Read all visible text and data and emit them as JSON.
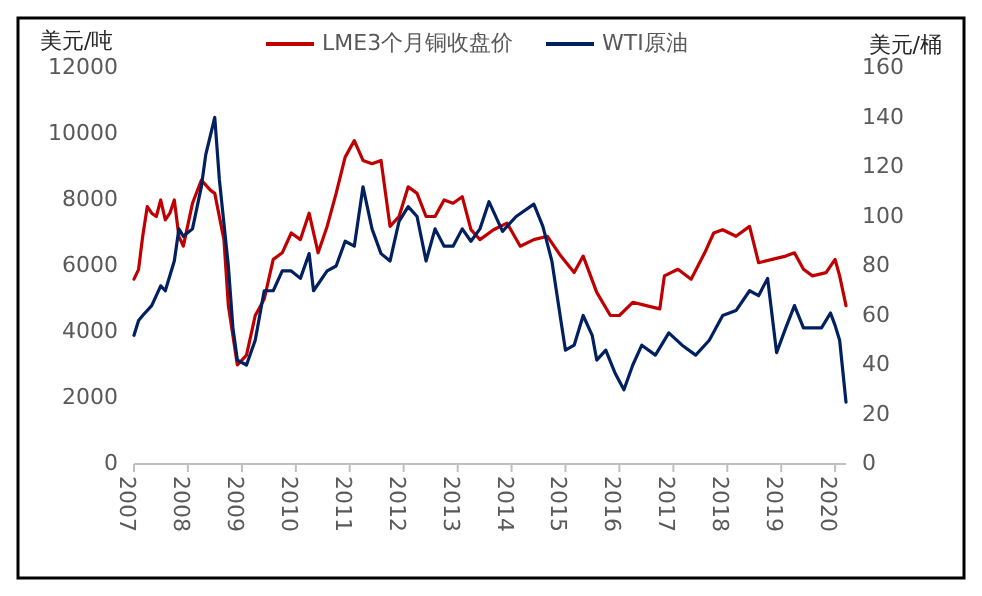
{
  "chart_data": {
    "type": "line",
    "ylabel": "美元/吨",
    "y2label": "美元/桶",
    "legend": "top",
    "grid": false,
    "xlim": [
      "2007-01",
      "2020-03-15"
    ],
    "xticks": [
      "2007",
      "2008",
      "2009",
      "2010",
      "2011",
      "2012",
      "2013",
      "2014",
      "2015",
      "2016",
      "2017",
      "2018",
      "2019",
      "2020"
    ],
    "ylim": [
      0,
      12000
    ],
    "yticks": [
      0,
      2000,
      4000,
      6000,
      8000,
      10000,
      12000
    ],
    "y2lim": [
      0,
      160
    ],
    "y2ticks": [
      0,
      20,
      40,
      60,
      80,
      100,
      120,
      140,
      160
    ],
    "series": [
      {
        "name": "LME3个月铜收盘价",
        "color": "#c00000",
        "x": [
          "2007-01",
          "2007-02",
          "2007-03",
          "2007-04",
          "2007-05",
          "2007-06",
          "2007-07",
          "2007-08",
          "2007-09",
          "2007-10",
          "2007-11",
          "2007-12",
          "2008-02",
          "2008-04",
          "2008-06",
          "2008-07",
          "2008-09",
          "2008-10",
          "2008-12",
          "2009-02",
          "2009-04",
          "2009-06",
          "2009-08",
          "2009-10",
          "2009-12",
          "2010-02",
          "2010-04",
          "2010-06",
          "2010-08",
          "2010-10",
          "2010-12",
          "2011-02",
          "2011-04",
          "2011-06",
          "2011-08",
          "2011-10",
          "2011-12",
          "2012-02",
          "2012-04",
          "2012-06",
          "2012-08",
          "2012-10",
          "2012-12",
          "2013-02",
          "2013-04",
          "2013-06",
          "2013-09",
          "2013-12",
          "2014-03",
          "2014-06",
          "2014-09",
          "2014-12",
          "2015-03",
          "2015-05",
          "2015-08",
          "2015-11",
          "2016-01",
          "2016-04",
          "2016-07",
          "2016-10",
          "2016-11",
          "2017-02",
          "2017-05",
          "2017-08",
          "2017-10",
          "2017-12",
          "2018-03",
          "2018-06",
          "2018-08",
          "2018-11",
          "2019-02",
          "2019-04",
          "2019-06",
          "2019-08",
          "2019-11",
          "2020-01",
          "2020-02",
          "2020-03-15"
        ],
        "values": [
          5600,
          5900,
          6900,
          7800,
          7600,
          7500,
          8000,
          7400,
          7600,
          8000,
          6900,
          6600,
          7900,
          8600,
          8300,
          8200,
          6800,
          4800,
          3000,
          3300,
          4500,
          5000,
          6200,
          6400,
          7000,
          6800,
          7600,
          6400,
          7200,
          8200,
          9300,
          9800,
          9200,
          9100,
          9200,
          7200,
          7500,
          8400,
          8200,
          7500,
          7500,
          8000,
          7900,
          8100,
          7100,
          6800,
          7100,
          7300,
          6600,
          6800,
          6900,
          6300,
          5800,
          6300,
          5200,
          4500,
          4500,
          4900,
          4800,
          4700,
          5700,
          5900,
          5600,
          6400,
          7000,
          7100,
          6900,
          7200,
          6100,
          6200,
          6300,
          6400,
          5900,
          5700,
          5800,
          6200,
          5700,
          4800
        ]
      },
      {
        "name": "WTI原油",
        "color": "#002060",
        "axis": "y2",
        "x": [
          "2007-01",
          "2007-02",
          "2007-03",
          "2007-05",
          "2007-07",
          "2007-08",
          "2007-10",
          "2007-11",
          "2007-12",
          "2008-02",
          "2008-04",
          "2008-05",
          "2008-07",
          "2008-08",
          "2008-10",
          "2008-11",
          "2008-12",
          "2009-02",
          "2009-04",
          "2009-06",
          "2009-08",
          "2009-10",
          "2009-12",
          "2010-02",
          "2010-04",
          "2010-05",
          "2010-08",
          "2010-10",
          "2010-12",
          "2011-02",
          "2011-04",
          "2011-06",
          "2011-08",
          "2011-10",
          "2011-12",
          "2012-02",
          "2012-04",
          "2012-06",
          "2012-08",
          "2012-10",
          "2012-12",
          "2013-02",
          "2013-04",
          "2013-06",
          "2013-08",
          "2013-11",
          "2014-02",
          "2014-06",
          "2014-08",
          "2014-10",
          "2014-12",
          "2015-01",
          "2015-03",
          "2015-05",
          "2015-07",
          "2015-08",
          "2015-10",
          "2015-12",
          "2016-02",
          "2016-04",
          "2016-06",
          "2016-09",
          "2016-12",
          "2017-03",
          "2017-06",
          "2017-09",
          "2017-12",
          "2018-03",
          "2018-06",
          "2018-08",
          "2018-10",
          "2018-12",
          "2019-02",
          "2019-04",
          "2019-06",
          "2019-08",
          "2019-10",
          "2019-12",
          "2020-01",
          "2020-02",
          "2020-03-15"
        ],
        "values": [
          52,
          58,
          60,
          64,
          72,
          70,
          82,
          95,
          92,
          95,
          112,
          125,
          140,
          115,
          80,
          55,
          42,
          40,
          50,
          70,
          70,
          78,
          78,
          75,
          85,
          70,
          78,
          80,
          90,
          88,
          112,
          95,
          85,
          82,
          98,
          104,
          100,
          82,
          95,
          88,
          88,
          95,
          90,
          95,
          106,
          94,
          100,
          105,
          96,
          82,
          58,
          46,
          48,
          60,
          52,
          42,
          46,
          37,
          30,
          40,
          48,
          44,
          53,
          48,
          44,
          50,
          60,
          62,
          70,
          68,
          75,
          45,
          55,
          64,
          55,
          55,
          55,
          61,
          56,
          50,
          25
        ]
      }
    ]
  }
}
